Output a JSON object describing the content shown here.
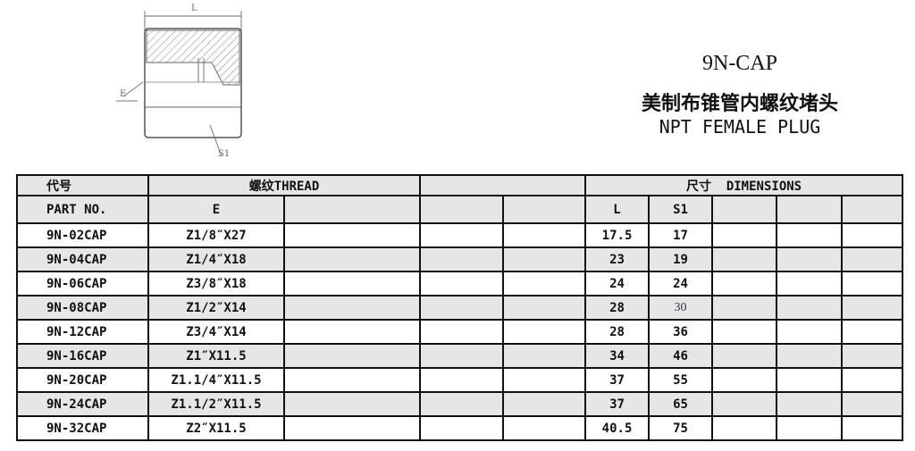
{
  "drawing": {
    "labels": {
      "length": "L",
      "thread": "E",
      "hex": "S1"
    }
  },
  "title": {
    "code": "9N-CAP",
    "name_cn": "美制布锥管内螺纹堵头",
    "name_en": "NPT FEMALE PLUG"
  },
  "table": {
    "header": {
      "part_cn": "代号",
      "part_en": "PART NO.",
      "thread": "螺纹THREAD",
      "thread_e": "E",
      "dimensions": "尺寸  DIMENSIONS",
      "dim_l": "L",
      "dim_s1": "S1"
    },
    "rows": [
      {
        "part": "9N-02CAP",
        "e": "Z1/8″X27",
        "l": "17.5",
        "s1": "17"
      },
      {
        "part": "9N-04CAP",
        "e": "Z1/4″X18",
        "l": "23",
        "s1": "19"
      },
      {
        "part": "9N-06CAP",
        "e": "Z3/8″X18",
        "l": "24",
        "s1": "24"
      },
      {
        "part": "9N-08CAP",
        "e": "Z1/2″X14",
        "l": "28",
        "s1": "30"
      },
      {
        "part": "9N-12CAP",
        "e": "Z3/4″X14",
        "l": "28",
        "s1": "36"
      },
      {
        "part": "9N-16CAP",
        "e": "Z1″X11.5",
        "l": "34",
        "s1": "46"
      },
      {
        "part": "9N-20CAP",
        "e": "Z1.1/4″X11.5",
        "l": "37",
        "s1": "55"
      },
      {
        "part": "9N-24CAP",
        "e": "Z1.1/2″X11.5",
        "l": "37",
        "s1": "65"
      },
      {
        "part": "9N-32CAP",
        "e": "Z2″X11.5",
        "l": "40.5",
        "s1": "75"
      }
    ]
  }
}
